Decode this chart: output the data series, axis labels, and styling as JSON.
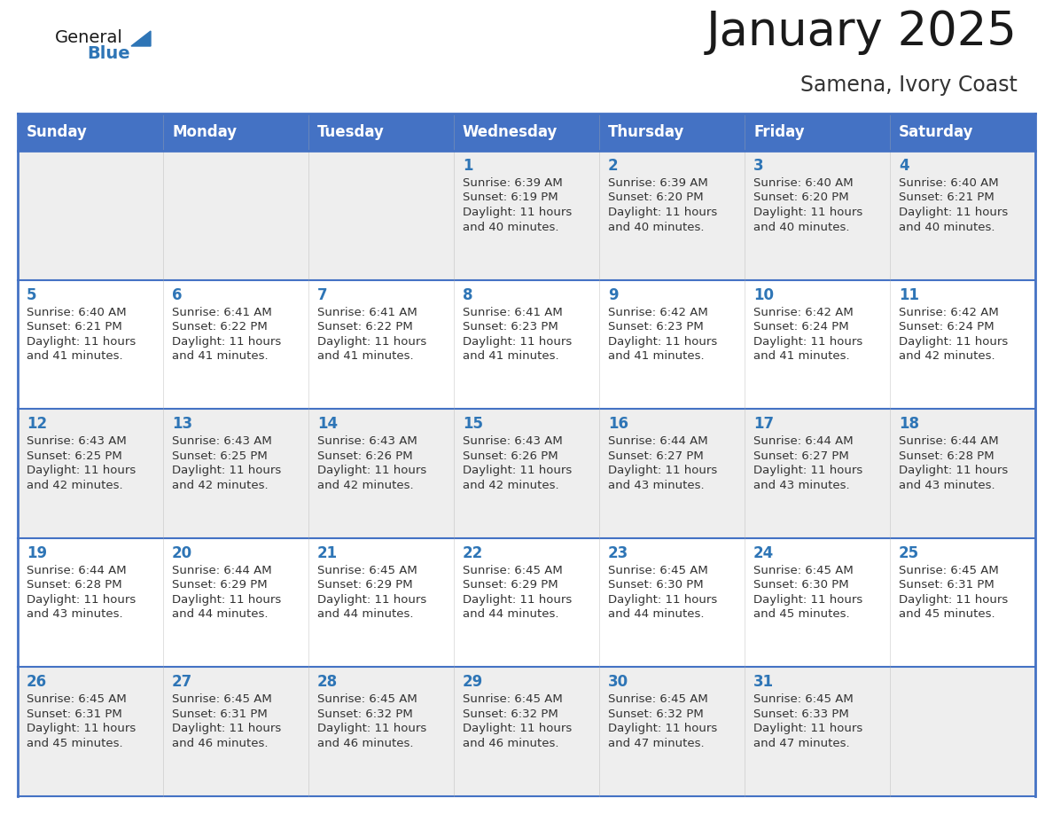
{
  "title": "January 2025",
  "subtitle": "Samena, Ivory Coast",
  "header_bg_color": "#4472C4",
  "header_text_color": "#FFFFFF",
  "day_names": [
    "Sunday",
    "Monday",
    "Tuesday",
    "Wednesday",
    "Thursday",
    "Friday",
    "Saturday"
  ],
  "row_bg_even": "#EEEEEE",
  "row_bg_odd": "#FFFFFF",
  "cell_border_color": "#4472C4",
  "title_color": "#1a1a1a",
  "subtitle_color": "#333333",
  "logo_general_color": "#1a1a1a",
  "logo_blue_color": "#2E75B6",
  "num_color": "#2E75B6",
  "text_color": "#333333",
  "calendar_data": [
    [
      {
        "day": null,
        "sunrise": null,
        "sunset": null,
        "daylight": null
      },
      {
        "day": null,
        "sunrise": null,
        "sunset": null,
        "daylight": null
      },
      {
        "day": null,
        "sunrise": null,
        "sunset": null,
        "daylight": null
      },
      {
        "day": 1,
        "sunrise": "6:39 AM",
        "sunset": "6:19 PM",
        "daylight": "11 hours and 40 minutes."
      },
      {
        "day": 2,
        "sunrise": "6:39 AM",
        "sunset": "6:20 PM",
        "daylight": "11 hours and 40 minutes."
      },
      {
        "day": 3,
        "sunrise": "6:40 AM",
        "sunset": "6:20 PM",
        "daylight": "11 hours and 40 minutes."
      },
      {
        "day": 4,
        "sunrise": "6:40 AM",
        "sunset": "6:21 PM",
        "daylight": "11 hours and 40 minutes."
      }
    ],
    [
      {
        "day": 5,
        "sunrise": "6:40 AM",
        "sunset": "6:21 PM",
        "daylight": "11 hours and 41 minutes."
      },
      {
        "day": 6,
        "sunrise": "6:41 AM",
        "sunset": "6:22 PM",
        "daylight": "11 hours and 41 minutes."
      },
      {
        "day": 7,
        "sunrise": "6:41 AM",
        "sunset": "6:22 PM",
        "daylight": "11 hours and 41 minutes."
      },
      {
        "day": 8,
        "sunrise": "6:41 AM",
        "sunset": "6:23 PM",
        "daylight": "11 hours and 41 minutes."
      },
      {
        "day": 9,
        "sunrise": "6:42 AM",
        "sunset": "6:23 PM",
        "daylight": "11 hours and 41 minutes."
      },
      {
        "day": 10,
        "sunrise": "6:42 AM",
        "sunset": "6:24 PM",
        "daylight": "11 hours and 41 minutes."
      },
      {
        "day": 11,
        "sunrise": "6:42 AM",
        "sunset": "6:24 PM",
        "daylight": "11 hours and 42 minutes."
      }
    ],
    [
      {
        "day": 12,
        "sunrise": "6:43 AM",
        "sunset": "6:25 PM",
        "daylight": "11 hours and 42 minutes."
      },
      {
        "day": 13,
        "sunrise": "6:43 AM",
        "sunset": "6:25 PM",
        "daylight": "11 hours and 42 minutes."
      },
      {
        "day": 14,
        "sunrise": "6:43 AM",
        "sunset": "6:26 PM",
        "daylight": "11 hours and 42 minutes."
      },
      {
        "day": 15,
        "sunrise": "6:43 AM",
        "sunset": "6:26 PM",
        "daylight": "11 hours and 42 minutes."
      },
      {
        "day": 16,
        "sunrise": "6:44 AM",
        "sunset": "6:27 PM",
        "daylight": "11 hours and 43 minutes."
      },
      {
        "day": 17,
        "sunrise": "6:44 AM",
        "sunset": "6:27 PM",
        "daylight": "11 hours and 43 minutes."
      },
      {
        "day": 18,
        "sunrise": "6:44 AM",
        "sunset": "6:28 PM",
        "daylight": "11 hours and 43 minutes."
      }
    ],
    [
      {
        "day": 19,
        "sunrise": "6:44 AM",
        "sunset": "6:28 PM",
        "daylight": "11 hours and 43 minutes."
      },
      {
        "day": 20,
        "sunrise": "6:44 AM",
        "sunset": "6:29 PM",
        "daylight": "11 hours and 44 minutes."
      },
      {
        "day": 21,
        "sunrise": "6:45 AM",
        "sunset": "6:29 PM",
        "daylight": "11 hours and 44 minutes."
      },
      {
        "day": 22,
        "sunrise": "6:45 AM",
        "sunset": "6:29 PM",
        "daylight": "11 hours and 44 minutes."
      },
      {
        "day": 23,
        "sunrise": "6:45 AM",
        "sunset": "6:30 PM",
        "daylight": "11 hours and 44 minutes."
      },
      {
        "day": 24,
        "sunrise": "6:45 AM",
        "sunset": "6:30 PM",
        "daylight": "11 hours and 45 minutes."
      },
      {
        "day": 25,
        "sunrise": "6:45 AM",
        "sunset": "6:31 PM",
        "daylight": "11 hours and 45 minutes."
      }
    ],
    [
      {
        "day": 26,
        "sunrise": "6:45 AM",
        "sunset": "6:31 PM",
        "daylight": "11 hours and 45 minutes."
      },
      {
        "day": 27,
        "sunrise": "6:45 AM",
        "sunset": "6:31 PM",
        "daylight": "11 hours and 46 minutes."
      },
      {
        "day": 28,
        "sunrise": "6:45 AM",
        "sunset": "6:32 PM",
        "daylight": "11 hours and 46 minutes."
      },
      {
        "day": 29,
        "sunrise": "6:45 AM",
        "sunset": "6:32 PM",
        "daylight": "11 hours and 46 minutes."
      },
      {
        "day": 30,
        "sunrise": "6:45 AM",
        "sunset": "6:32 PM",
        "daylight": "11 hours and 47 minutes."
      },
      {
        "day": 31,
        "sunrise": "6:45 AM",
        "sunset": "6:33 PM",
        "daylight": "11 hours and 47 minutes."
      },
      {
        "day": null,
        "sunrise": null,
        "sunset": null,
        "daylight": null
      }
    ]
  ]
}
